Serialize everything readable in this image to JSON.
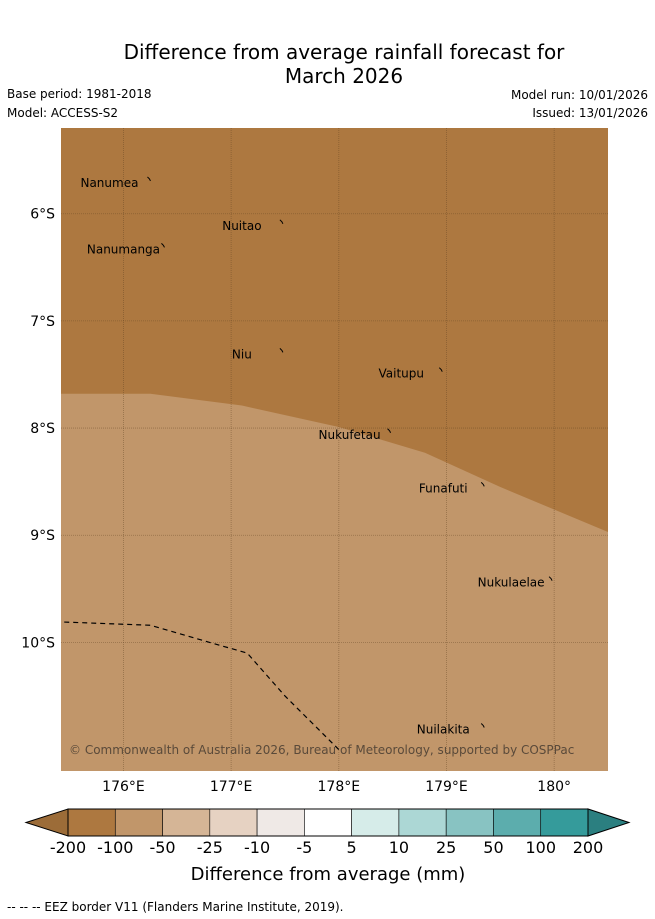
{
  "title_line1": "Difference from average rainfall forecast for",
  "title_line2": "March 2026",
  "meta": {
    "base_period": "Base period: 1981-2018",
    "model": "Model: ACCESS-S2",
    "model_run": "Model run: 10/01/2026",
    "issued": "Issued: 13/01/2026"
  },
  "map": {
    "lon_range": [
      175.42,
      180.5
    ],
    "lat_range": [
      -11.2,
      -5.2
    ],
    "x_ticks": [
      {
        "value": 176,
        "label": "176°E"
      },
      {
        "value": 177,
        "label": "177°E"
      },
      {
        "value": 178,
        "label": "178°E"
      },
      {
        "value": 179,
        "label": "179°E"
      },
      {
        "value": 180,
        "label": "180°"
      }
    ],
    "y_ticks": [
      {
        "value": -6,
        "label": "6°S"
      },
      {
        "value": -7,
        "label": "7°S"
      },
      {
        "value": -8,
        "label": "8°S"
      },
      {
        "value": -9,
        "label": "9°S"
      },
      {
        "value": -10,
        "label": "10°S"
      }
    ],
    "zones": [
      {
        "category": "-200 to -100",
        "color": "#ad7840"
      },
      {
        "category": "-100 to -50",
        "color": "#c1966a"
      }
    ],
    "zone_boundary": [
      [
        175.42,
        -7.68
      ],
      [
        176.25,
        -7.68
      ],
      [
        177.1,
        -7.79
      ],
      [
        178.0,
        -7.99
      ],
      [
        178.8,
        -8.23
      ],
      [
        179.5,
        -8.55
      ],
      [
        180.5,
        -8.97
      ]
    ],
    "eez_border": [
      [
        175.45,
        -9.81
      ],
      [
        176.25,
        -9.84
      ],
      [
        176.8,
        -10.0
      ],
      [
        177.15,
        -10.1
      ],
      [
        177.5,
        -10.5
      ],
      [
        177.9,
        -10.9
      ],
      [
        178.0,
        -11.0
      ]
    ],
    "places": [
      {
        "name": "Nanumea",
        "lon": 175.87,
        "lat": -5.75
      },
      {
        "name": "Nuitao",
        "lon": 177.1,
        "lat": -6.15
      },
      {
        "name": "Nanumanga",
        "lon": 176.0,
        "lat": -6.37
      },
      {
        "name": "Niu",
        "lon": 177.1,
        "lat": -7.35
      },
      {
        "name": "Vaitupu",
        "lon": 178.58,
        "lat": -7.53
      },
      {
        "name": "Nukufetau",
        "lon": 178.1,
        "lat": -8.1
      },
      {
        "name": "Funafuti",
        "lon": 178.97,
        "lat": -8.6
      },
      {
        "name": "Nukulaelae",
        "lon": 179.6,
        "lat": -9.48
      },
      {
        "name": "Nuilakita",
        "lon": 178.97,
        "lat": -10.85
      }
    ],
    "copyright": "© Commonwealth of Australia 2026, Bureau of Meteorology, supported by COSPPac"
  },
  "colorbar": {
    "title": "Difference from average (mm)",
    "labels": [
      "-200",
      "-100",
      "-50",
      "-25",
      "-10",
      "-5",
      "5",
      "10",
      "25",
      "50",
      "100",
      "200"
    ],
    "colors": [
      "#ad7840",
      "#c1966a",
      "#d5b596",
      "#e6d2c2",
      "#efe9e6",
      "#ffffff",
      "#d6ece9",
      "#acd7d5",
      "#88c3c2",
      "#5cadad",
      "#359b9b"
    ],
    "under_color": "#9c6c38",
    "over_color": "#2b7f80"
  },
  "footnote": "--  --  -- EEZ border V11 (Flanders Marine Institute, 2019)."
}
